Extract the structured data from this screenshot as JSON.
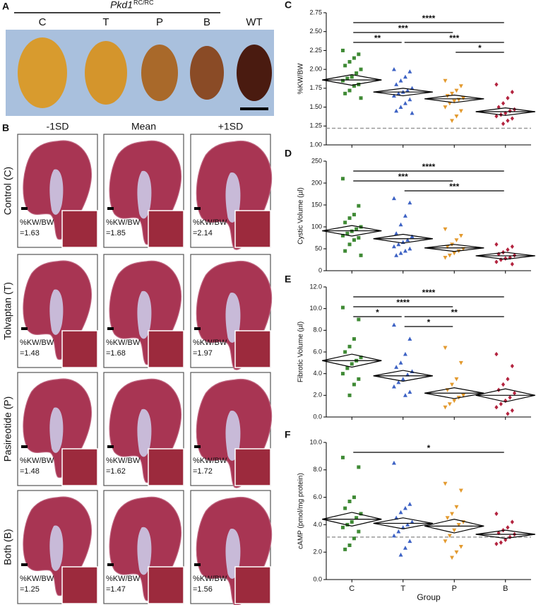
{
  "panel_a": {
    "label": "A",
    "title": "Pkd1",
    "title_sup": "RC/RC",
    "groups": [
      "C",
      "T",
      "P",
      "B",
      "WT"
    ]
  },
  "panel_b": {
    "label": "B",
    "columns": [
      "-1SD",
      "Mean",
      "+1SD"
    ],
    "rows": [
      {
        "name": "Control (C)",
        "cells": [
          {
            "metric": "%KW/BW",
            "value": "=1.63"
          },
          {
            "metric": "%KW/BW",
            "value": "=1.85"
          },
          {
            "metric": "%KW/BW",
            "value": "=2.14"
          }
        ]
      },
      {
        "name": "Tolvaptan (T)",
        "cells": [
          {
            "metric": "%KW/BW",
            "value": "=1.48"
          },
          {
            "metric": "%KW/BW",
            "value": "=1.68"
          },
          {
            "metric": "%KW/BW",
            "value": "=1.97"
          }
        ]
      },
      {
        "name": "Pasireotide (P)",
        "cells": [
          {
            "metric": "%KW/BW",
            "value": "=1.48"
          },
          {
            "metric": "%KW/BW",
            "value": "=1.62"
          },
          {
            "metric": "%KW/BW",
            "value": "=1.72"
          }
        ]
      },
      {
        "name": "Both (B)",
        "cells": [
          {
            "metric": "%KW/BW",
            "value": "=1.25"
          },
          {
            "metric": "%KW/BW",
            "value": "=1.47"
          },
          {
            "metric": "%KW/BW",
            "value": "=1.56"
          }
        ]
      }
    ]
  },
  "chart_data": [
    {
      "type": "scatter",
      "panel": "C",
      "ylabel": "%KW/BW",
      "ylim": [
        1.0,
        2.75
      ],
      "yticks": [
        {
          "value": 1.0,
          "label": "1.00"
        },
        {
          "value": 1.25,
          "label": "1.25"
        },
        {
          "value": 1.5,
          "label": "1.50"
        },
        {
          "value": 1.75,
          "label": "1.75"
        },
        {
          "value": 2.0,
          "label": "2.00"
        },
        {
          "value": 2.25,
          "label": "2.25"
        },
        {
          "value": 2.5,
          "label": "2.50"
        },
        {
          "value": 2.75,
          "label": "2.75"
        }
      ],
      "reference": 1.22,
      "series": [
        {
          "color": "#3f8a35",
          "marker": "square",
          "values": [
            2.25,
            2.2,
            2.15,
            2.1,
            2.05,
            2.0,
            1.95,
            1.9,
            1.88,
            1.85,
            1.8,
            1.78,
            1.72,
            1.68,
            1.62
          ]
        },
        {
          "color": "#3d62c4",
          "marker": "triangle-up",
          "values": [
            2.0,
            1.97,
            1.9,
            1.85,
            1.8,
            1.75,
            1.72,
            1.7,
            1.68,
            1.65,
            1.6,
            1.55,
            1.5,
            1.45,
            1.42
          ]
        },
        {
          "color": "#e39a2f",
          "marker": "triangle-down",
          "values": [
            1.85,
            1.78,
            1.72,
            1.68,
            1.65,
            1.62,
            1.6,
            1.58,
            1.55,
            1.5,
            1.45,
            1.38,
            1.32
          ]
        },
        {
          "color": "#b3243f",
          "marker": "diamond",
          "values": [
            1.8,
            1.7,
            1.62,
            1.55,
            1.5,
            1.47,
            1.45,
            1.42,
            1.4,
            1.38,
            1.35,
            1.32,
            1.28
          ]
        }
      ],
      "means": [
        1.86,
        1.7,
        1.61,
        1.44
      ],
      "ci": [
        0.07,
        0.05,
        0.05,
        0.05
      ],
      "comparisons": [
        {
          "groups": [
            0,
            3
          ],
          "label": "****"
        },
        {
          "groups": [
            0,
            2
          ],
          "label": "***"
        },
        {
          "groups": [
            0,
            1
          ],
          "label": "**"
        },
        {
          "groups": [
            1,
            3
          ],
          "label": "***"
        },
        {
          "groups": [
            2,
            3
          ],
          "label": "*"
        }
      ]
    },
    {
      "type": "scatter",
      "panel": "D",
      "ylabel": "Cystic Volume (µl)",
      "ylim": [
        0,
        250
      ],
      "yticks": [
        0,
        50,
        100,
        150,
        200,
        250
      ],
      "series": [
        {
          "color": "#3f8a35",
          "marker": "square",
          "values": [
            210,
            148,
            128,
            120,
            110,
            100,
            95,
            90,
            85,
            80,
            75,
            70,
            60,
            45,
            35
          ]
        },
        {
          "color": "#3d62c4",
          "marker": "triangle-up",
          "values": [
            165,
            155,
            125,
            105,
            85,
            78,
            70,
            65,
            60,
            55,
            50,
            45,
            40,
            35
          ]
        },
        {
          "color": "#e39a2f",
          "marker": "triangle-down",
          "values": [
            95,
            80,
            70,
            60,
            55,
            50,
            45,
            40,
            35,
            30
          ]
        },
        {
          "color": "#b3243f",
          "marker": "diamond",
          "values": [
            60,
            55,
            48,
            42,
            38,
            35,
            30,
            28,
            25,
            20,
            15
          ]
        }
      ],
      "means": [
        91,
        73,
        52,
        34
      ],
      "ci": [
        12,
        10,
        8,
        8
      ],
      "comparisons": [
        {
          "groups": [
            0,
            3
          ],
          "label": "****"
        },
        {
          "groups": [
            0,
            2
          ],
          "label": "***"
        },
        {
          "groups": [
            1,
            3
          ],
          "label": "***"
        }
      ]
    },
    {
      "type": "scatter",
      "panel": "E",
      "ylabel": "Fibrotic Volume (µl)",
      "ylim": [
        0,
        12
      ],
      "yticks": [
        {
          "value": 0,
          "label": "0.0"
        },
        {
          "value": 2,
          "label": "2.0"
        },
        {
          "value": 4,
          "label": "4.0"
        },
        {
          "value": 6,
          "label": "6.0"
        },
        {
          "value": 8,
          "label": "8.0"
        },
        {
          "value": 10,
          "label": "10.0"
        },
        {
          "value": 12,
          "label": "12.0"
        }
      ],
      "series": [
        {
          "color": "#3f8a35",
          "marker": "square",
          "values": [
            10.1,
            9.0,
            7.2,
            6.5,
            6.0,
            5.5,
            5.2,
            4.9,
            4.5,
            4.0,
            3.5,
            3.0,
            2.0
          ]
        },
        {
          "color": "#3d62c4",
          "marker": "triangle-up",
          "values": [
            8.5,
            7.2,
            5.8,
            5.0,
            4.6,
            4.2,
            3.9,
            3.5,
            3.2,
            2.8,
            2.3,
            2.0
          ]
        },
        {
          "color": "#e39a2f",
          "marker": "triangle-down",
          "values": [
            6.4,
            5.0,
            3.5,
            3.0,
            2.5,
            2.0,
            1.8,
            1.5,
            1.2,
            0.9
          ]
        },
        {
          "color": "#b3243f",
          "marker": "diamond",
          "values": [
            5.8,
            4.7,
            3.5,
            3.0,
            2.5,
            2.2,
            1.8,
            1.5,
            1.2,
            0.9,
            0.6,
            0.3
          ]
        }
      ],
      "means": [
        5.2,
        3.8,
        2.2,
        2.0
      ],
      "ci": [
        0.6,
        0.5,
        0.5,
        0.6
      ],
      "comparisons": [
        {
          "groups": [
            0,
            3
          ],
          "label": "****"
        },
        {
          "groups": [
            0,
            2
          ],
          "label": "****"
        },
        {
          "groups": [
            0,
            1
          ],
          "label": "*"
        },
        {
          "groups": [
            1,
            3
          ],
          "label": "**"
        },
        {
          "groups": [
            1,
            2
          ],
          "label": "*"
        }
      ]
    },
    {
      "type": "scatter",
      "panel": "F",
      "ylabel": "cAMP (pmol/mg protein)",
      "xlabel": "Group",
      "categories": [
        "C",
        "T",
        "P",
        "B"
      ],
      "ylim": [
        0,
        10
      ],
      "yticks": [
        {
          "value": 0,
          "label": "0.0"
        },
        {
          "value": 2,
          "label": "2.0"
        },
        {
          "value": 4,
          "label": "4.0"
        },
        {
          "value": 6,
          "label": "6.0"
        },
        {
          "value": 8,
          "label": "8.0"
        },
        {
          "value": 10,
          "label": "10.0"
        }
      ],
      "reference": 3.1,
      "series": [
        {
          "color": "#3f8a35",
          "marker": "square",
          "values": [
            8.9,
            8.2,
            6.0,
            5.7,
            5.2,
            4.8,
            4.5,
            4.2,
            4.0,
            3.8,
            3.5,
            3.0,
            2.5,
            2.2
          ]
        },
        {
          "color": "#3d62c4",
          "marker": "triangle-up",
          "values": [
            8.5,
            5.5,
            5.2,
            4.9,
            4.5,
            4.2,
            4.0,
            3.8,
            3.5,
            3.2,
            2.8,
            2.3,
            1.8
          ]
        },
        {
          "color": "#e39a2f",
          "marker": "triangle-down",
          "values": [
            7.0,
            6.5,
            5.3,
            4.8,
            4.5,
            4.2,
            4.0,
            3.6,
            3.2,
            2.8,
            2.4,
            2.0,
            1.6
          ]
        },
        {
          "color": "#b3243f",
          "marker": "diamond",
          "values": [
            4.8,
            4.2,
            3.8,
            3.6,
            3.4,
            3.3,
            3.1,
            2.9,
            2.7,
            2.6
          ]
        }
      ],
      "means": [
        4.4,
        4.1,
        3.9,
        3.3
      ],
      "ci": [
        0.5,
        0.4,
        0.5,
        0.3
      ],
      "comparisons": [
        {
          "groups": [
            0,
            3
          ],
          "label": "*"
        }
      ]
    }
  ]
}
